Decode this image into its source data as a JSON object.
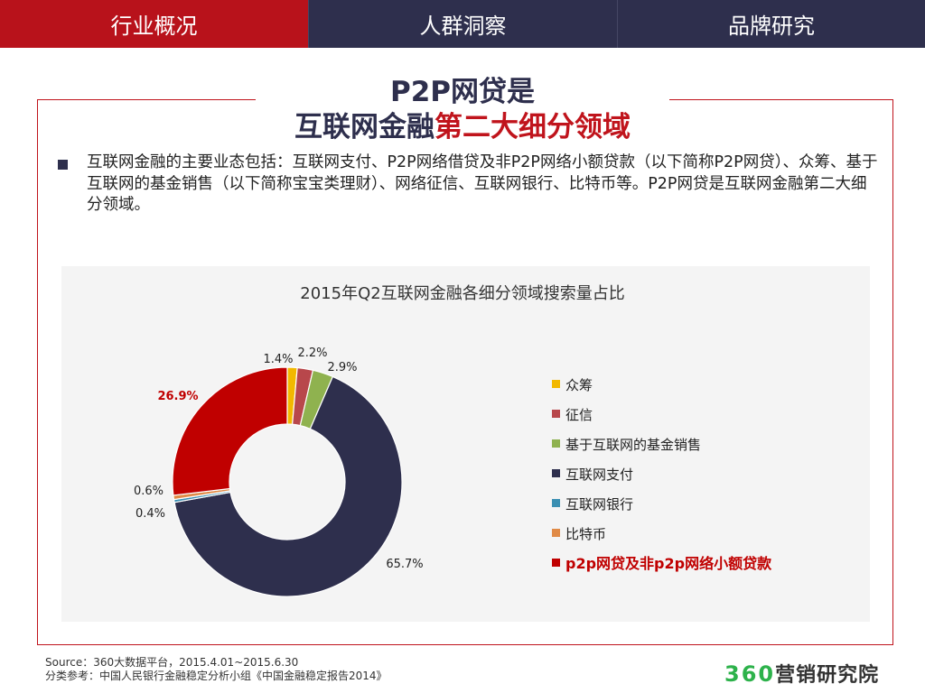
{
  "tabs": [
    "行业概况",
    "人群洞察",
    "品牌研究"
  ],
  "title": {
    "line1": "P2P网贷是",
    "line2_plain": "互联网金融",
    "line2_red": "第二大细分领域"
  },
  "bullet": "互联网金融的主要业态包括：互联网支付、P2P网络借贷及非P2P网络小额贷款（以下简称P2P网贷）、众筹、基于互联网的基金销售（以下简称宝宝类理财）、网络征信、互联网银行、比特币等。P2P网贷是互联网金融第二大细分领域。",
  "chart_data": {
    "type": "pie",
    "title": "2015年Q2互联网金融各细分领域搜索量占比",
    "series": [
      {
        "name": "众筹",
        "value": 1.4,
        "label": "1.4%",
        "color": "#f2b800"
      },
      {
        "name": "征信",
        "value": 2.2,
        "label": "2.2%",
        "color": "#b8474b"
      },
      {
        "name": "基于互联网的基金销售",
        "value": 2.9,
        "label": "2.9%",
        "color": "#8fb24f"
      },
      {
        "name": "互联网支付",
        "value": 65.7,
        "label": "65.7%",
        "color": "#2e2f4d"
      },
      {
        "name": "互联网银行",
        "value": 0.4,
        "label": "0.4%",
        "color": "#3a8fb2"
      },
      {
        "name": "比特币",
        "value": 0.6,
        "label": "0.6%",
        "color": "#e08a46"
      },
      {
        "name": "p2p网贷及非p2p网络小额贷款",
        "value": 26.9,
        "label": "26.9%",
        "color": "#c00000",
        "highlight": true
      }
    ]
  },
  "source": {
    "line1": "Source：360大数据平台，2015.4.01~2015.6.30",
    "line2": "分类参考：中国人民银行金融稳定分析小组《中国金融稳定报告2014》"
  },
  "logo": {
    "number": "360",
    "text": "营销研究院"
  }
}
